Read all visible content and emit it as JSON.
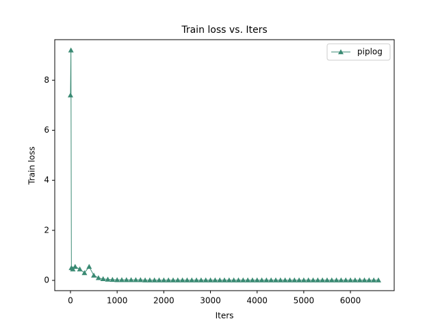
{
  "chart_data": {
    "type": "line",
    "title": "Train loss  vs. Iters",
    "x_label": "Iters",
    "y_label": "Train loss",
    "x": [
      0,
      10,
      20,
      50,
      100,
      200,
      300,
      400,
      500,
      600,
      700,
      800,
      900,
      1000,
      1100,
      1200,
      1300,
      1400,
      1500,
      1600,
      1700,
      1800,
      1900,
      2000,
      2100,
      2200,
      2300,
      2400,
      2500,
      2600,
      2700,
      2800,
      2900,
      3000,
      3100,
      3200,
      3300,
      3400,
      3500,
      3600,
      3700,
      3800,
      3900,
      4000,
      4100,
      4200,
      4300,
      4400,
      4500,
      4600,
      4700,
      4800,
      4900,
      5000,
      5100,
      5200,
      5300,
      5400,
      5500,
      5600,
      5700,
      5800,
      5900,
      6000,
      6100,
      6200,
      6300,
      6400,
      6500,
      6600
    ],
    "series": [
      {
        "name": "piplog",
        "color": "#3a8a73",
        "marker": "triangle",
        "values": [
          7.4,
          9.2,
          0.5,
          0.45,
          0.55,
          0.45,
          0.3,
          0.55,
          0.2,
          0.1,
          0.06,
          0.04,
          0.03,
          0.02,
          0.02,
          0.02,
          0.02,
          0.02,
          0.02,
          0.01,
          0.01,
          0.01,
          0.01,
          0.01,
          0.01,
          0.01,
          0.01,
          0.01,
          0.01,
          0.01,
          0.01,
          0.01,
          0.01,
          0.01,
          0.01,
          0.01,
          0.01,
          0.01,
          0.01,
          0.01,
          0.01,
          0.01,
          0.01,
          0.01,
          0.01,
          0.01,
          0.01,
          0.01,
          0.01,
          0.01,
          0.01,
          0.01,
          0.01,
          0.01,
          0.01,
          0.01,
          0.01,
          0.01,
          0.01,
          0.01,
          0.01,
          0.01,
          0.01,
          0.01,
          0.01,
          0.01,
          0.01,
          0.01,
          0.01,
          0.01
        ]
      }
    ],
    "xlim": [
      -337,
      6938
    ],
    "ylim": [
      -0.41,
      9.62
    ],
    "xticks": [
      0,
      1000,
      2000,
      3000,
      4000,
      5000,
      6000
    ],
    "yticks": [
      0,
      2,
      4,
      6,
      8
    ],
    "grid": false,
    "legend": "upper right"
  }
}
